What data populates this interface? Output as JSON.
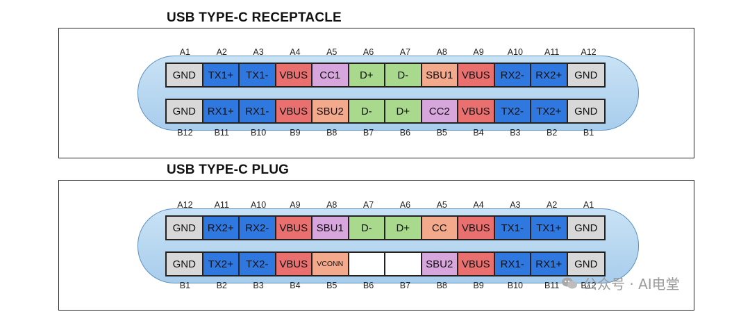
{
  "colors": {
    "GND": "#d8d8d8",
    "TX": "#2f78e0",
    "RX": "#2f78e0",
    "VBUS": "#ea6f6f",
    "CC": "#d7a6dc",
    "CC_plug": "#f3a98b",
    "D": "#a8d98c",
    "SBU": "#f3a98b",
    "SBU_alt": "#d7a6dc",
    "VCONN": "#f3a98b",
    "EMPTY": "#ffffff"
  },
  "receptacle": {
    "title": "USB TYPE-C RECEPTACLE",
    "top_labels": [
      "A1",
      "A2",
      "A3",
      "A4",
      "A5",
      "A6",
      "A7",
      "A8",
      "A9",
      "A10",
      "A11",
      "A12"
    ],
    "top_pins": [
      {
        "name": "GND",
        "color": "#d8d8d8"
      },
      {
        "name": "TX1+",
        "color": "#2f78e0"
      },
      {
        "name": "TX1-",
        "color": "#2f78e0"
      },
      {
        "name": "VBUS",
        "color": "#ea6f6f"
      },
      {
        "name": "CC1",
        "color": "#d7a6dc"
      },
      {
        "name": "D+",
        "color": "#a8d98c"
      },
      {
        "name": "D-",
        "color": "#a8d98c"
      },
      {
        "name": "SBU1",
        "color": "#f3a98b"
      },
      {
        "name": "VBUS",
        "color": "#ea6f6f"
      },
      {
        "name": "RX2-",
        "color": "#2f78e0"
      },
      {
        "name": "RX2+",
        "color": "#2f78e0"
      },
      {
        "name": "GND",
        "color": "#d8d8d8"
      }
    ],
    "bottom_pins": [
      {
        "name": "GND",
        "color": "#d8d8d8"
      },
      {
        "name": "RX1+",
        "color": "#2f78e0"
      },
      {
        "name": "RX1-",
        "color": "#2f78e0"
      },
      {
        "name": "VBUS",
        "color": "#ea6f6f"
      },
      {
        "name": "SBU2",
        "color": "#f3a98b"
      },
      {
        "name": "D-",
        "color": "#a8d98c"
      },
      {
        "name": "D+",
        "color": "#a8d98c"
      },
      {
        "name": "CC2",
        "color": "#d7a6dc"
      },
      {
        "name": "VBUS",
        "color": "#ea6f6f"
      },
      {
        "name": "TX2-",
        "color": "#2f78e0"
      },
      {
        "name": "TX2+",
        "color": "#2f78e0"
      },
      {
        "name": "GND",
        "color": "#d8d8d8"
      }
    ],
    "bottom_labels": [
      "B12",
      "B11",
      "B10",
      "B9",
      "B8",
      "B7",
      "B6",
      "B5",
      "B4",
      "B3",
      "B2",
      "B1"
    ]
  },
  "plug": {
    "title": "USB TYPE-C PLUG",
    "top_labels": [
      "A12",
      "A11",
      "A10",
      "A9",
      "A8",
      "A7",
      "A6",
      "A5",
      "A4",
      "A3",
      "A2",
      "A1"
    ],
    "top_pins": [
      {
        "name": "GND",
        "color": "#d8d8d8"
      },
      {
        "name": "RX2+",
        "color": "#2f78e0"
      },
      {
        "name": "RX2-",
        "color": "#2f78e0"
      },
      {
        "name": "VBUS",
        "color": "#ea6f6f"
      },
      {
        "name": "SBU1",
        "color": "#d7a6dc"
      },
      {
        "name": "D-",
        "color": "#a8d98c"
      },
      {
        "name": "D+",
        "color": "#a8d98c"
      },
      {
        "name": "CC",
        "color": "#f3a98b"
      },
      {
        "name": "VBUS",
        "color": "#ea6f6f"
      },
      {
        "name": "TX1-",
        "color": "#2f78e0"
      },
      {
        "name": "TX1+",
        "color": "#2f78e0"
      },
      {
        "name": "GND",
        "color": "#d8d8d8"
      }
    ],
    "bottom_pins": [
      {
        "name": "GND",
        "color": "#d8d8d8"
      },
      {
        "name": "TX2+",
        "color": "#2f78e0"
      },
      {
        "name": "TX2-",
        "color": "#2f78e0"
      },
      {
        "name": "VBUS",
        "color": "#ea6f6f"
      },
      {
        "name": "VCONN",
        "color": "#f3a98b",
        "small": true
      },
      {
        "name": "",
        "color": "#ffffff"
      },
      {
        "name": "",
        "color": "#ffffff"
      },
      {
        "name": "SBU2",
        "color": "#d7a6dc"
      },
      {
        "name": "VBUS",
        "color": "#ea6f6f"
      },
      {
        "name": "RX1-",
        "color": "#2f78e0"
      },
      {
        "name": "RX1+",
        "color": "#2f78e0"
      },
      {
        "name": "GND",
        "color": "#d8d8d8"
      }
    ],
    "bottom_labels": [
      "B1",
      "B2",
      "B3",
      "B4",
      "B5",
      "B6",
      "B7",
      "B8",
      "B9",
      "B10",
      "B11",
      "B12"
    ]
  },
  "watermark": {
    "text": "公众号 · AI电堂",
    "icon": "wechat-icon"
  }
}
